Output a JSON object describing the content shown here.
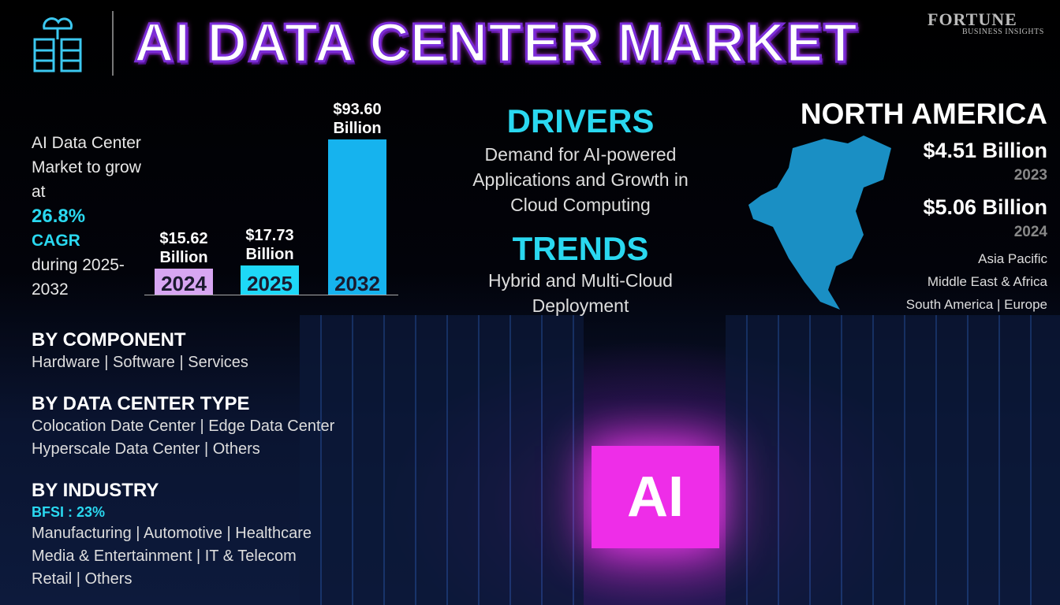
{
  "header": {
    "title": "AI DATA CENTER MARKET",
    "logo": {
      "name": "FORTUNE",
      "tagline": "BUSINESS INSIGHTS"
    }
  },
  "growth": {
    "intro": "AI Data Center Market to grow at",
    "cagr": "26.8%",
    "cagr_label": "CAGR",
    "period": "during 2025-2032"
  },
  "chart_data": {
    "type": "bar",
    "categories": [
      "2024",
      "2025",
      "2032"
    ],
    "values": [
      15.62,
      17.73,
      93.6
    ],
    "value_labels": [
      "$15.62 Billion",
      "$17.73 Billion",
      "$93.60 Billion"
    ],
    "colors": [
      "#d7a6f2",
      "#1ed8f7",
      "#16b3ee"
    ]
  },
  "drivers": {
    "title": "DRIVERS",
    "text": "Demand for AI-powered Applications and Growth in Cloud Computing"
  },
  "trends": {
    "title": "TRENDS",
    "text": "Hybrid and Multi-Cloud Deployment"
  },
  "region": {
    "name": "NORTH AMERICA",
    "figures": [
      {
        "value": "$4.51 Billion",
        "year": "2023"
      },
      {
        "value": "$5.06 Billion",
        "year": "2024"
      }
    ],
    "others": [
      "Asia Pacific",
      "Middle East & Africa",
      "South America | Europe"
    ]
  },
  "segments": [
    {
      "title": "BY COMPONENT",
      "lines": [
        "Hardware | Software | Services"
      ]
    },
    {
      "title": "BY DATA CENTER TYPE",
      "lines": [
        "Colocation Date Center | Edge Data Center",
        "Hyperscale Data Center | Others"
      ]
    },
    {
      "title": "BY INDUSTRY",
      "highlight": "BFSI : 23%",
      "lines": [
        "Manufacturing | Automotive | Healthcare",
        "Media & Entertainment | IT & Telecom",
        "Retail | Others"
      ]
    }
  ],
  "hero": {
    "label": "AI"
  }
}
